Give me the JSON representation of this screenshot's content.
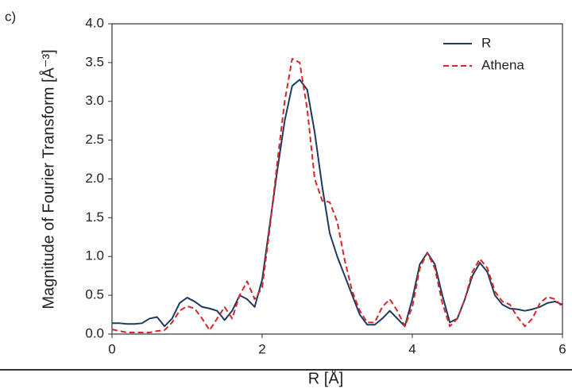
{
  "chart_data": {
    "type": "line",
    "panel_label": "c)",
    "xlabel": "R [Å]",
    "ylabel": "Magnitude of Fourier Transform [Å⁻³]",
    "x": [
      0,
      0.1,
      0.2,
      0.3,
      0.4,
      0.5,
      0.6,
      0.7,
      0.8,
      0.9,
      1.0,
      1.1,
      1.2,
      1.3,
      1.4,
      1.5,
      1.6,
      1.7,
      1.8,
      1.9,
      2.0,
      2.1,
      2.2,
      2.3,
      2.4,
      2.5,
      2.6,
      2.7,
      2.8,
      2.9,
      3.0,
      3.1,
      3.2,
      3.3,
      3.4,
      3.5,
      3.6,
      3.7,
      3.8,
      3.9,
      4.0,
      4.1,
      4.2,
      4.3,
      4.4,
      4.5,
      4.6,
      4.7,
      4.8,
      4.9,
      5.0,
      5.1,
      5.2,
      5.3,
      5.4,
      5.5,
      5.6,
      5.7,
      5.8,
      5.9,
      6.0
    ],
    "series": [
      {
        "name": "R",
        "color": "#1f3a5f",
        "dash": false,
        "values": [
          0.14,
          0.14,
          0.13,
          0.13,
          0.14,
          0.2,
          0.22,
          0.1,
          0.2,
          0.4,
          0.47,
          0.42,
          0.35,
          0.33,
          0.3,
          0.18,
          0.3,
          0.5,
          0.45,
          0.35,
          0.7,
          1.4,
          2.1,
          2.75,
          3.2,
          3.28,
          3.15,
          2.6,
          1.9,
          1.3,
          1.0,
          0.75,
          0.5,
          0.25,
          0.12,
          0.12,
          0.2,
          0.3,
          0.2,
          0.1,
          0.45,
          0.9,
          1.05,
          0.9,
          0.5,
          0.15,
          0.2,
          0.45,
          0.75,
          0.92,
          0.8,
          0.5,
          0.38,
          0.33,
          0.32,
          0.3,
          0.32,
          0.35,
          0.4,
          0.42,
          0.38
        ]
      },
      {
        "name": "Athena",
        "color": "#d62728",
        "dash": true,
        "values": [
          0.06,
          0.04,
          0.02,
          0.02,
          0.02,
          0.02,
          0.04,
          0.05,
          0.15,
          0.3,
          0.36,
          0.33,
          0.2,
          0.05,
          0.2,
          0.35,
          0.2,
          0.5,
          0.68,
          0.45,
          0.6,
          1.35,
          2.2,
          3.0,
          3.55,
          3.5,
          2.9,
          2.0,
          1.72,
          1.7,
          1.45,
          0.95,
          0.55,
          0.3,
          0.15,
          0.15,
          0.35,
          0.45,
          0.3,
          0.1,
          0.35,
          0.85,
          1.05,
          0.85,
          0.4,
          0.1,
          0.2,
          0.45,
          0.8,
          0.97,
          0.85,
          0.55,
          0.42,
          0.38,
          0.22,
          0.1,
          0.2,
          0.4,
          0.48,
          0.45,
          0.35
        ]
      }
    ],
    "xlim": [
      0,
      6
    ],
    "xticks": [
      0,
      2,
      4,
      6
    ],
    "ylim": [
      0,
      4
    ],
    "yticks": [
      {
        "value": 0,
        "label": "0.0"
      },
      0.5,
      {
        "value": 1,
        "label": "1.0"
      },
      1.5,
      {
        "value": 2,
        "label": "2.0"
      },
      2.5,
      {
        "value": 3,
        "label": "3.0"
      },
      3.5,
      {
        "value": 4,
        "label": "4.0"
      }
    ],
    "legend": "upper right",
    "grid": false
  }
}
